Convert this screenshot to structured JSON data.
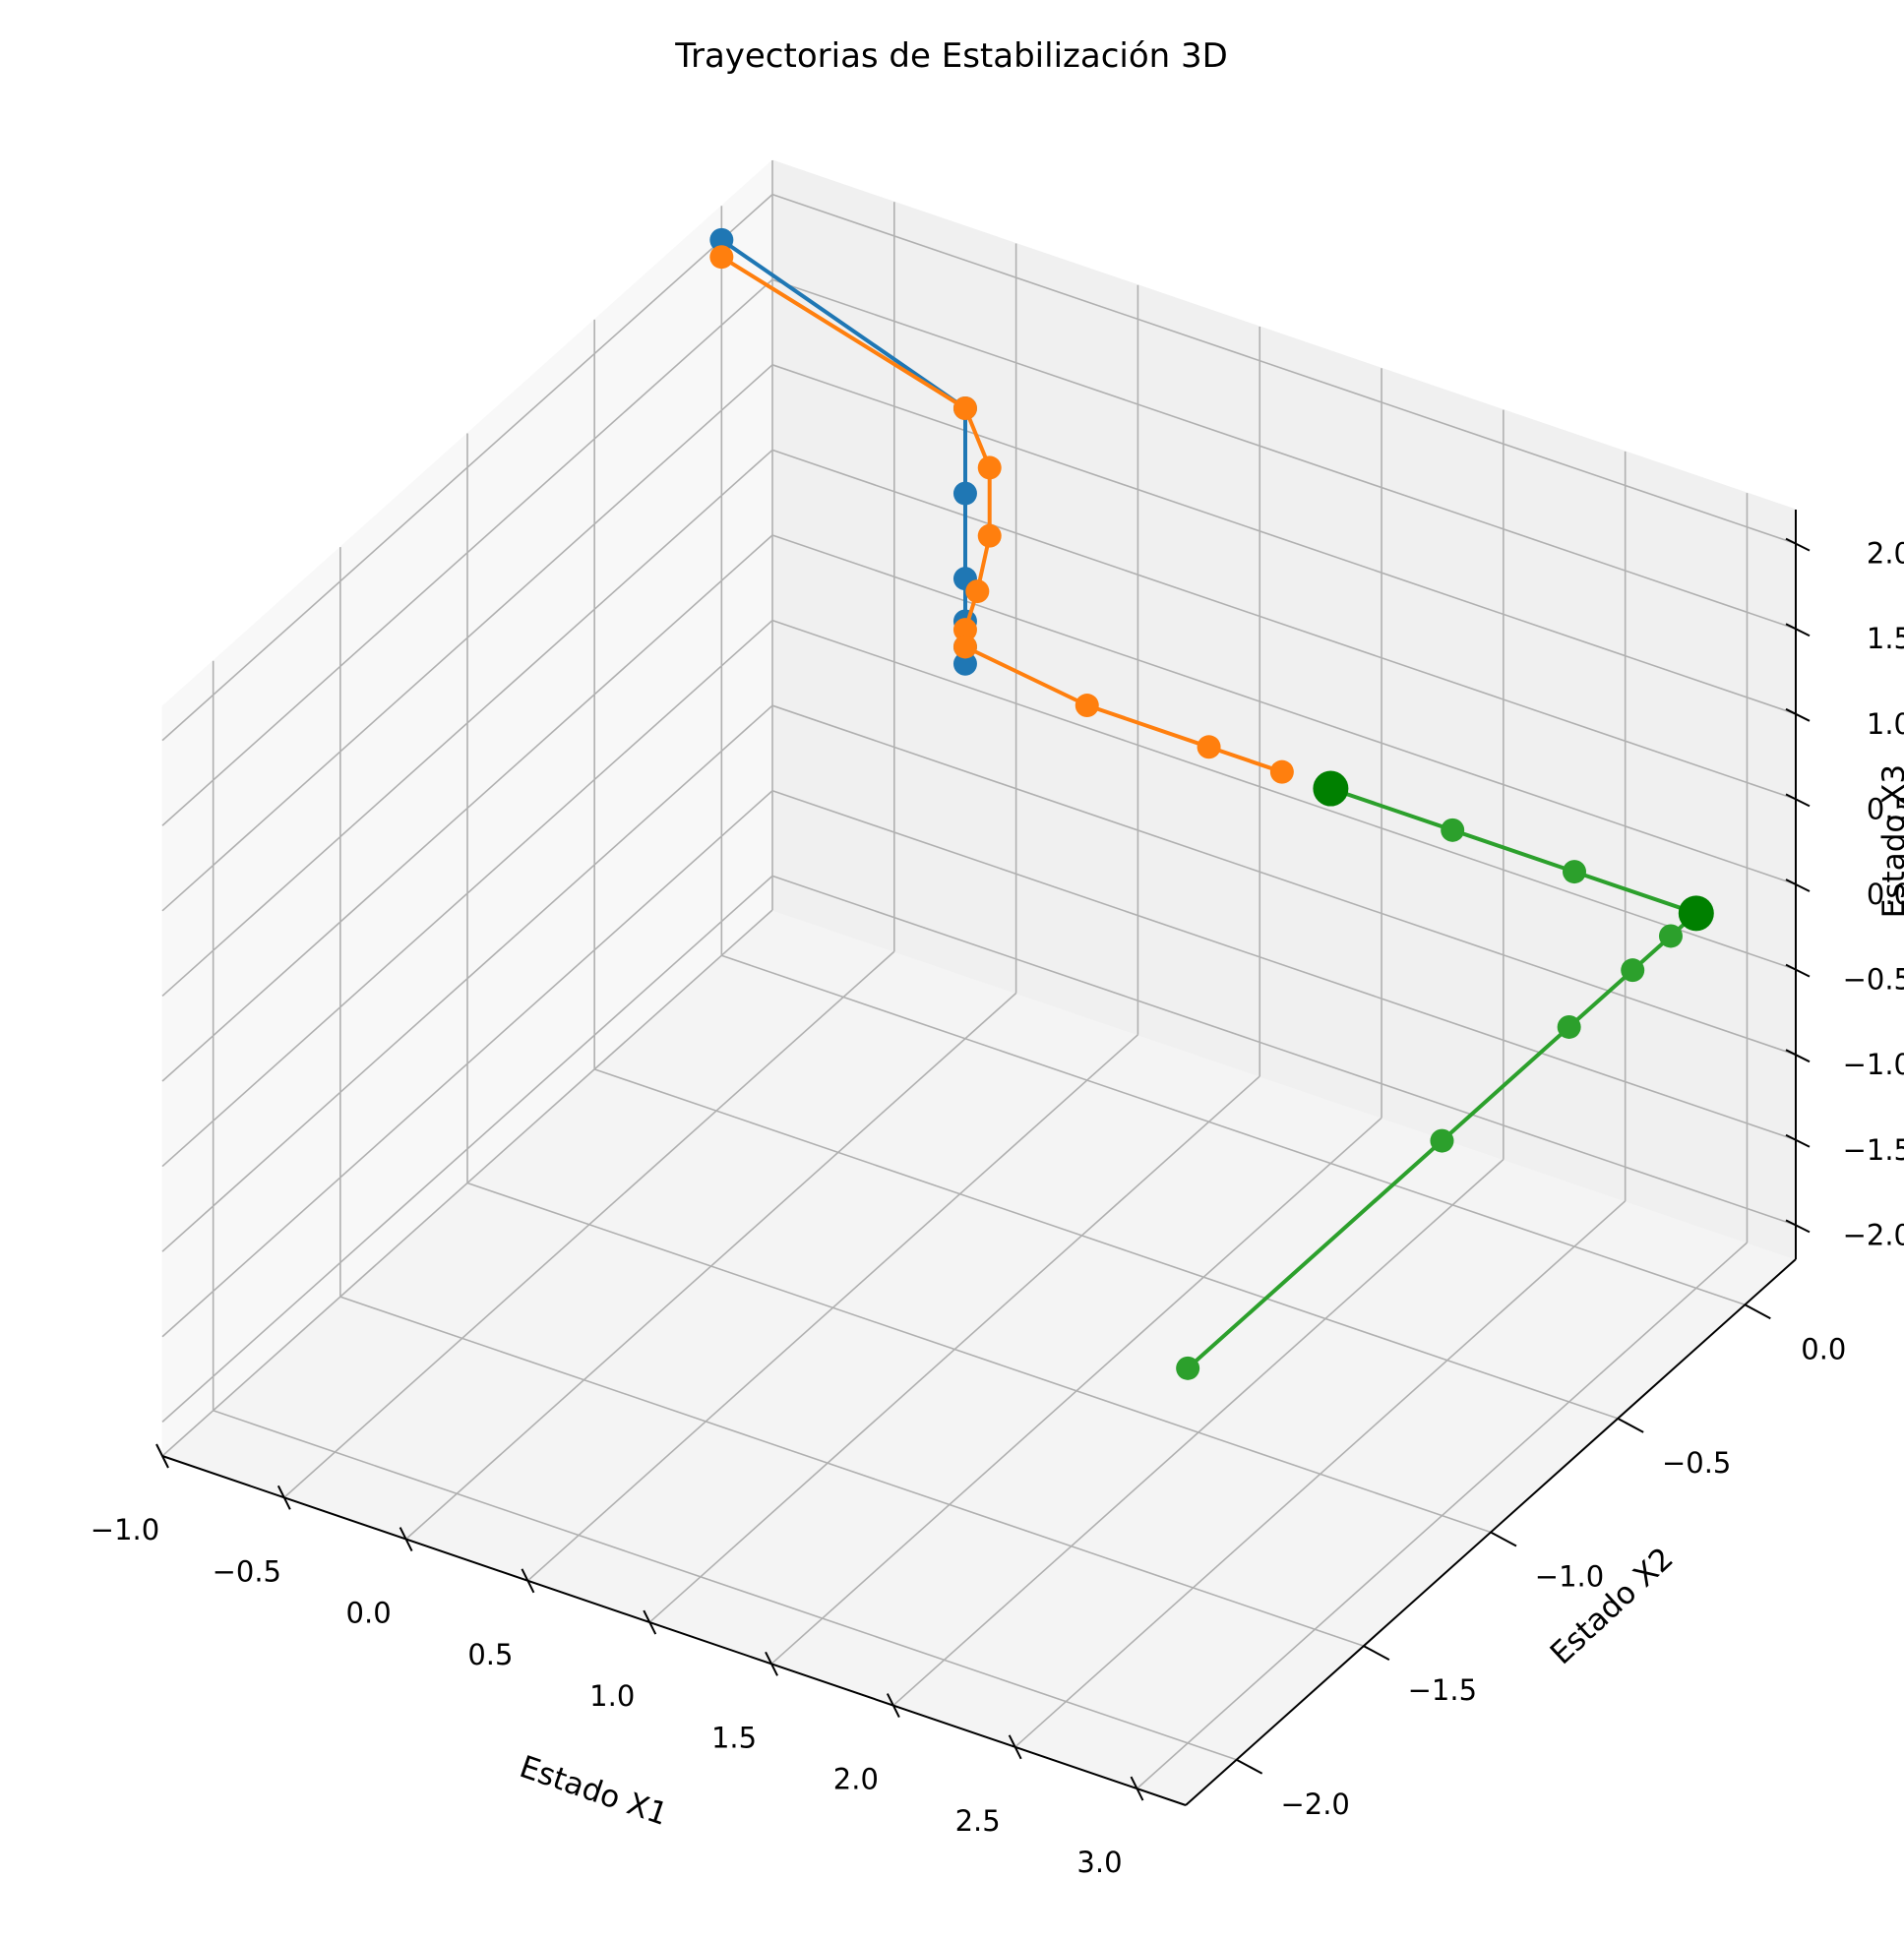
{
  "chart_data": {
    "type": "line3d",
    "title": "Trayectorias de Estabilización 3D",
    "xlabel": "Estado X1",
    "ylabel": "Estado X2",
    "zlabel": "Estado X3",
    "xlim": [
      -1.0,
      3.2
    ],
    "ylim": [
      -2.2,
      0.2
    ],
    "zlim": [
      -2.2,
      2.2
    ],
    "xticks": [
      "−1.0",
      "−0.5",
      "0.0",
      "0.5",
      "1.0",
      "1.5",
      "2.0",
      "2.5",
      "3.0"
    ],
    "yticks": [
      "−2.0",
      "−1.5",
      "−1.0",
      "−0.5",
      "0.0"
    ],
    "zticks": [
      "−2.0",
      "−1.5",
      "−1.0",
      "−0.5",
      "0.0",
      "0.5",
      "1.0",
      "1.5",
      "2.0"
    ],
    "grid": true,
    "series": [
      {
        "color": "#1f77b4",
        "points": [
          [
            -1.0,
            0.0,
            2.0
          ],
          [
            0.0,
            0.0,
            1.5
          ],
          [
            0.0,
            0.0,
            1.0
          ],
          [
            0.0,
            0.0,
            0.5
          ],
          [
            0.0,
            0.0,
            0.25
          ],
          [
            0.0,
            0.0,
            0.1
          ],
          [
            0.0,
            0.0,
            0.0
          ]
        ]
      },
      {
        "color": "#ff7f0e",
        "points": [
          [
            -1.0,
            0.0,
            1.9
          ],
          [
            0.0,
            0.0,
            1.5
          ],
          [
            0.1,
            0.0,
            1.2
          ],
          [
            0.1,
            0.0,
            0.8
          ],
          [
            0.05,
            0.0,
            0.45
          ],
          [
            0.0,
            0.0,
            0.2
          ],
          [
            0.0,
            0.0,
            0.1
          ],
          [
            0.5,
            0.0,
            0.0
          ],
          [
            1.0,
            0.0,
            0.0
          ],
          [
            1.3,
            0.0,
            0.0
          ]
        ]
      },
      {
        "color": "#2ca02c",
        "points": [
          [
            3.0,
            -2.0,
            0.0
          ],
          [
            3.0,
            -1.0,
            0.0
          ],
          [
            3.0,
            -0.5,
            0.0
          ],
          [
            3.0,
            -0.25,
            0.0
          ],
          [
            3.0,
            -0.1,
            0.0
          ],
          [
            3.0,
            0.0,
            0.0
          ],
          [
            2.5,
            0.0,
            0.0
          ],
          [
            2.0,
            0.0,
            0.0
          ],
          [
            1.5,
            0.0,
            0.0
          ]
        ]
      }
    ],
    "highlight_points": [
      {
        "color": "#008000",
        "point": [
          1.5,
          0.0,
          0.0
        ]
      },
      {
        "color": "#008000",
        "point": [
          3.0,
          0.0,
          0.0
        ]
      }
    ]
  }
}
